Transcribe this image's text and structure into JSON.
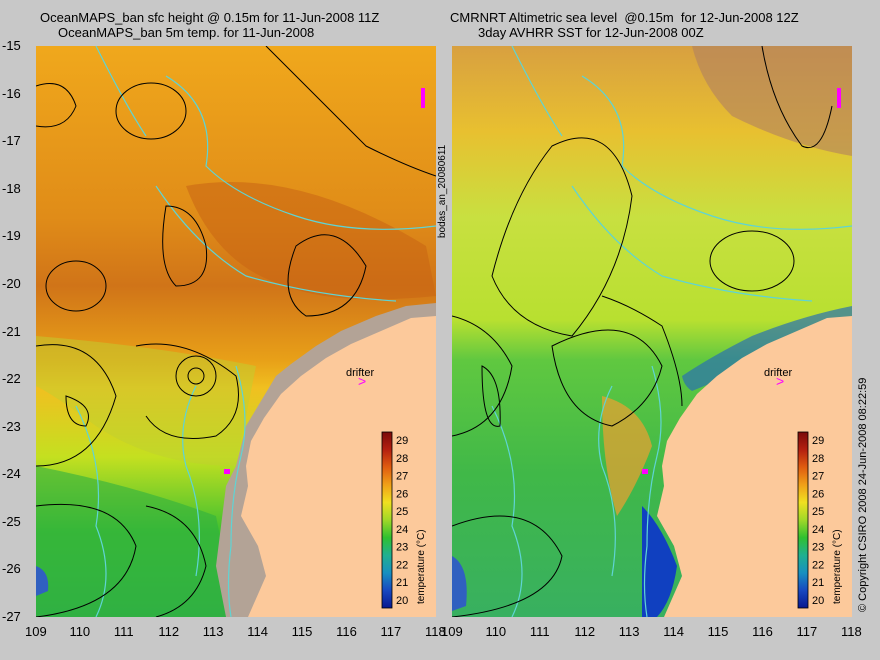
{
  "left_panel": {
    "title_line1": "OceanMAPS_ban sfc height @ 0.15m for 11-Jun-2008 11Z",
    "title_line2": "OceanMAPS_ban 5m temp. for 11-Jun-2008"
  },
  "right_panel": {
    "title_line1": "CMRNRT Altimetric sea level  @0.15m  for 12-Jun-2008 12Z",
    "title_line2": "3day AVHRR SST for 12-Jun-2008 00Z"
  },
  "marker_label": "drifter",
  "run_label": "bodas_an_20080611",
  "copyright": "© Copyright CSIRO 2008    24-Jun-2008 08:22:59",
  "colorbar": {
    "label": "temperature (°C)",
    "ticks": [
      "29",
      "28",
      "27",
      "26",
      "25",
      "24",
      "23",
      "22",
      "21",
      "20"
    ]
  },
  "axes": {
    "lat_ticks": [
      "-15",
      "-16",
      "-17",
      "-18",
      "-19",
      "-20",
      "-21",
      "-22",
      "-23",
      "-24",
      "-25",
      "-26",
      "-27"
    ],
    "lon_ticks": [
      "109",
      "110",
      "111",
      "112",
      "113",
      "114",
      "115",
      "116",
      "117",
      "118"
    ]
  },
  "colors": {
    "land": "#fcc99b",
    "shelf": "#b3a396",
    "contour": "#000000",
    "bathymetry": "#5fd4d4",
    "drifter": "#ff00ff"
  },
  "chart_data": {
    "type": "heatmap",
    "xlim": [
      109,
      118
    ],
    "ylim": [
      -27,
      -15
    ],
    "zlim": [
      20,
      29
    ],
    "marker": {
      "label": "drifter",
      "lon": 116.1,
      "lat": -21.9
    }
  }
}
